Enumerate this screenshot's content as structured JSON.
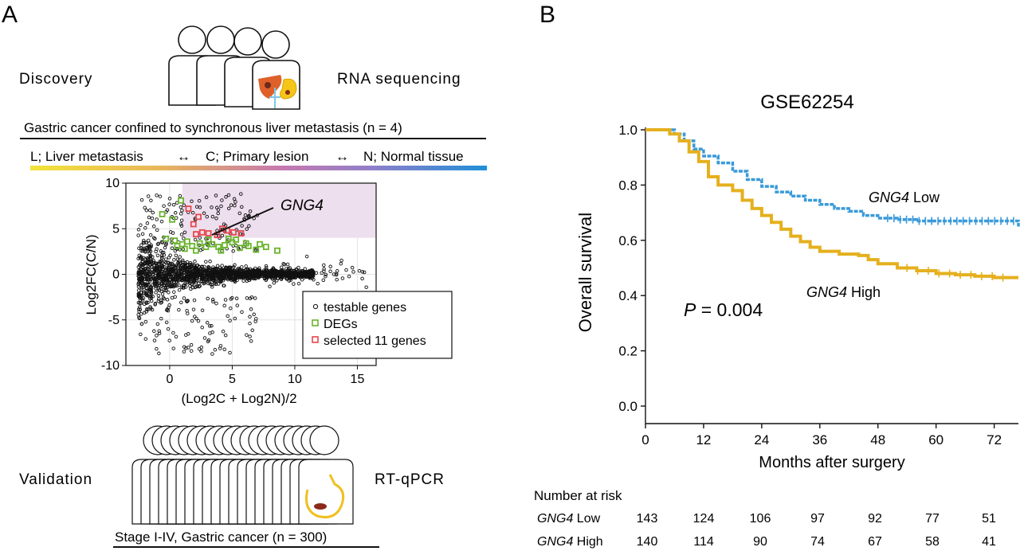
{
  "panel_a": {
    "letter": "A",
    "discovery_label": "Discovery",
    "rna_label": "RNA sequencing",
    "cohort_label": "Gastric cancer confined to synchronous liver metastasis (n = 4)",
    "comparison": {
      "l_label": "L; Liver metastasis",
      "c_label": "C; Primary lesion",
      "n_label": "N; Normal tissue",
      "arrow": "↔"
    },
    "validation_label": "Validation",
    "rtqpcr_label": "RT-qPCR",
    "stage_label": "Stage I-IV, Gastric cancer (n = 300)"
  },
  "panel_b": {
    "letter": "B",
    "risk_header": "Number at risk",
    "risk_rows": [
      {
        "gene": "GNG4",
        "group": " Low",
        "counts": [
          "143",
          "124",
          "106",
          "97",
          "92",
          "77",
          "51"
        ]
      },
      {
        "gene": "GNG4",
        "group": " High",
        "counts": [
          "140",
          "114",
          "90",
          "74",
          "67",
          "58",
          "41"
        ]
      }
    ]
  },
  "colors": {
    "low": "#3a9ad9",
    "high": "#e5b01e",
    "degs": "#6ab42d",
    "selected": "#e5484d",
    "highlight": "#eedfee",
    "gradient": [
      "#f2e33a",
      "#e8b75a",
      "#c679b0",
      "#8f7fc9",
      "#1f8fd9"
    ]
  },
  "chart_data": [
    {
      "type": "scatter",
      "title": "",
      "annotation": "GNG4",
      "xlabel": "(Log2C + Log2N)/2",
      "ylabel": "Log2FC(C/N)",
      "xlim": [
        -3.5,
        16.5
      ],
      "ylim": [
        -10,
        10
      ],
      "xticks": [
        "0",
        "5",
        "10",
        "15"
      ],
      "yticks": [
        "10",
        "5",
        "0",
        "-5",
        "-10"
      ],
      "grid": true,
      "highlight_region": {
        "x": [
          1,
          16.5
        ],
        "y": [
          4,
          10
        ]
      },
      "legend_position": "bottom-right",
      "legend": [
        "testable genes",
        "DEGs",
        "selected 11 genes"
      ],
      "series": [
        {
          "name": "selected 11 genes",
          "points": [
            [
              1.5,
              7.2
            ],
            [
              2.3,
              6.3
            ],
            [
              1.9,
              5.5
            ],
            [
              2.1,
              4.4
            ],
            [
              2.6,
              4.6
            ],
            [
              3.1,
              4.5
            ],
            [
              3.8,
              4.3
            ],
            [
              4.2,
              5.0
            ],
            [
              4.6,
              4.8
            ],
            [
              5.1,
              4.6
            ],
            [
              5.7,
              4.5
            ]
          ]
        },
        {
          "name": "DEGs",
          "points": [
            [
              0.9,
              8.1
            ],
            [
              -0.6,
              6.6
            ],
            [
              0.2,
              6.0
            ],
            [
              -0.3,
              3.9
            ],
            [
              0.4,
              3.7
            ],
            [
              1.0,
              3.3
            ],
            [
              1.4,
              3.6
            ],
            [
              1.8,
              3.1
            ],
            [
              2.4,
              3.4
            ],
            [
              2.9,
              3.0
            ],
            [
              3.4,
              3.3
            ],
            [
              3.9,
              3.0
            ],
            [
              4.4,
              3.2
            ],
            [
              5.0,
              3.5
            ],
            [
              5.6,
              2.9
            ],
            [
              6.3,
              3.1
            ],
            [
              6.9,
              2.7
            ],
            [
              7.7,
              3.0
            ],
            [
              8.6,
              2.6
            ],
            [
              4.7,
              3.9
            ],
            [
              5.3,
              3.8
            ],
            [
              6.1,
              3.4
            ],
            [
              3.1,
              3.8
            ],
            [
              1.2,
              2.8
            ],
            [
              2.1,
              2.6
            ],
            [
              0.6,
              3.1
            ],
            [
              7.2,
              3.3
            ],
            [
              4.1,
              2.6
            ]
          ]
        }
      ]
    },
    {
      "type": "line",
      "title": "GSE62254",
      "xlabel": "Months after surgery",
      "ylabel": "Overall survival",
      "xlim": [
        0,
        77
      ],
      "ylim": [
        0,
        1.0
      ],
      "xticks": [
        "0",
        "12",
        "24",
        "36",
        "48",
        "60",
        "72"
      ],
      "yticks": [
        "0.0",
        "0.2",
        "0.4",
        "0.6",
        "0.8",
        "1.0"
      ],
      "p_text_italic": "P",
      "p_text_value": " = 0.004",
      "series": [
        {
          "name": "GNG4 Low",
          "label_gene": "GNG4",
          "label_group": " Low",
          "points": [
            [
              0,
              1.0
            ],
            [
              4,
              1.0
            ],
            [
              6,
              0.985
            ],
            [
              8,
              0.96
            ],
            [
              10,
              0.93
            ],
            [
              12,
              0.905
            ],
            [
              15,
              0.88
            ],
            [
              18,
              0.85
            ],
            [
              21,
              0.82
            ],
            [
              24,
              0.795
            ],
            [
              27,
              0.775
            ],
            [
              30,
              0.76
            ],
            [
              33,
              0.745
            ],
            [
              36,
              0.73
            ],
            [
              39,
              0.715
            ],
            [
              42,
              0.705
            ],
            [
              45,
              0.69
            ],
            [
              48,
              0.68
            ],
            [
              52,
              0.675
            ],
            [
              56,
              0.67
            ],
            [
              60,
              0.67
            ],
            [
              66,
              0.67
            ],
            [
              72,
              0.67
            ],
            [
              76,
              0.67
            ],
            [
              77,
              0.65
            ]
          ]
        },
        {
          "name": "GNG4 High",
          "label_gene": "GNG4",
          "label_group": " High",
          "points": [
            [
              0,
              1.0
            ],
            [
              3,
              1.0
            ],
            [
              5,
              0.985
            ],
            [
              7,
              0.96
            ],
            [
              9,
              0.92
            ],
            [
              11,
              0.885
            ],
            [
              13,
              0.83
            ],
            [
              15,
              0.8
            ],
            [
              18,
              0.78
            ],
            [
              20,
              0.745
            ],
            [
              22,
              0.715
            ],
            [
              24,
              0.69
            ],
            [
              26,
              0.665
            ],
            [
              28,
              0.64
            ],
            [
              30,
              0.615
            ],
            [
              32,
              0.595
            ],
            [
              34,
              0.575
            ],
            [
              36,
              0.56
            ],
            [
              40,
              0.55
            ],
            [
              44,
              0.545
            ],
            [
              46,
              0.53
            ],
            [
              48,
              0.515
            ],
            [
              52,
              0.5
            ],
            [
              56,
              0.49
            ],
            [
              60,
              0.48
            ],
            [
              64,
              0.475
            ],
            [
              68,
              0.47
            ],
            [
              72,
              0.465
            ],
            [
              77,
              0.465
            ]
          ]
        }
      ]
    }
  ]
}
